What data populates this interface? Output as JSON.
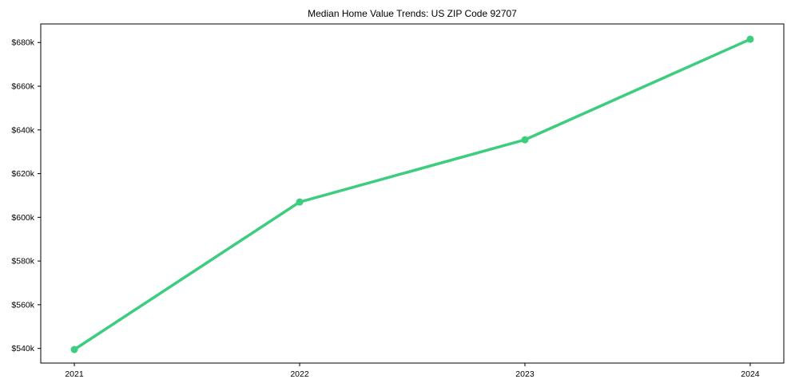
{
  "chart_data": {
    "type": "line",
    "title": "Median Home Value Trends: US ZIP Code 92707",
    "xlabel": "",
    "ylabel": "",
    "x_tick_labels": [
      "2021",
      "2022",
      "2023",
      "2024"
    ],
    "y_tick_labels": [
      "$540k",
      "$560k",
      "$580k",
      "$600k",
      "$620k",
      "$640k",
      "$660k",
      "$680k"
    ],
    "y_ticks_k": [
      540,
      560,
      580,
      600,
      620,
      640,
      660,
      680
    ],
    "ylim_k": [
      533.3,
      688.5
    ],
    "grid": false,
    "legend": "none",
    "series": [
      {
        "values_k": [
          539.5,
          607,
          635.5,
          681.5
        ],
        "color": "#3ccd7e"
      }
    ],
    "axis_color": "#000000",
    "text_color": "#000000",
    "background": "#ffffff"
  }
}
